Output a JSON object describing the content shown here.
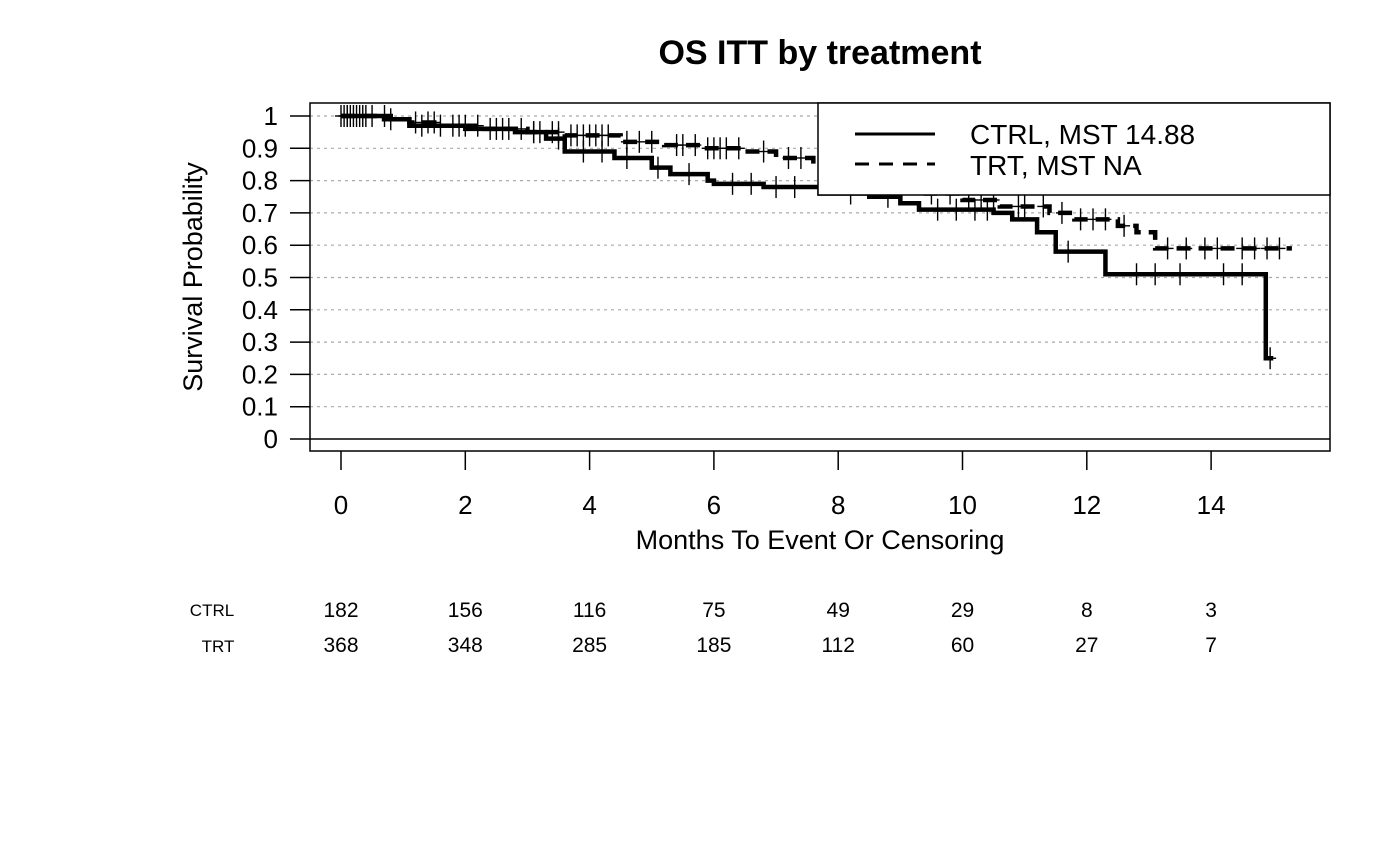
{
  "chart_data": {
    "type": "line",
    "subtype": "kaplan-meier",
    "title": "OS ITT by treatment",
    "xlabel": "Months To Event Or Censoring",
    "ylabel": "Survival Probability",
    "xlim": [
      0,
      15.5
    ],
    "ylim": [
      0,
      1
    ],
    "x_ticks": [
      0,
      2,
      4,
      6,
      8,
      10,
      12,
      14
    ],
    "y_ticks": [
      "0",
      "0.1",
      "0.2",
      "0.3",
      "0.4",
      "0.5",
      "0.6",
      "0.7",
      "0.8",
      "0.9",
      "1"
    ],
    "grid": "horizontal dotted",
    "legend_position": "top-right",
    "series": [
      {
        "name": "CTRL, MST 14.88",
        "line_style": "solid",
        "steps": [
          [
            0,
            1
          ],
          [
            0.8,
            0.99
          ],
          [
            1.1,
            0.97
          ],
          [
            2.0,
            0.96
          ],
          [
            2.8,
            0.95
          ],
          [
            3.3,
            0.93
          ],
          [
            3.6,
            0.89
          ],
          [
            4.4,
            0.87
          ],
          [
            5.0,
            0.84
          ],
          [
            5.3,
            0.82
          ],
          [
            5.9,
            0.8
          ],
          [
            6.0,
            0.79
          ],
          [
            6.8,
            0.78
          ],
          [
            7.7,
            0.76
          ],
          [
            8.5,
            0.75
          ],
          [
            9.0,
            0.73
          ],
          [
            9.3,
            0.71
          ],
          [
            10.5,
            0.7
          ],
          [
            10.8,
            0.68
          ],
          [
            11.2,
            0.64
          ],
          [
            11.5,
            0.58
          ],
          [
            12.3,
            0.51
          ],
          [
            14.88,
            0.25
          ],
          [
            15.0,
            0.25
          ]
        ],
        "censor_times": [
          0.05,
          0.1,
          0.2,
          0.3,
          0.4,
          0.7,
          1.3,
          1.6,
          1.9,
          2.4,
          2.6,
          3.1,
          3.5,
          3.9,
          4.2,
          4.6,
          5.1,
          5.6,
          6.3,
          6.6,
          7.0,
          7.3,
          8.2,
          8.8,
          9.6,
          9.9,
          10.2,
          10.4,
          11.7,
          12.8,
          13.1,
          13.5,
          14.2,
          14.5,
          14.95
        ]
      },
      {
        "name": "TRT, MST NA",
        "line_style": "dashed",
        "steps": [
          [
            0,
            1
          ],
          [
            0.6,
            0.99
          ],
          [
            1.1,
            0.98
          ],
          [
            1.6,
            0.97
          ],
          [
            2.3,
            0.96
          ],
          [
            3.0,
            0.95
          ],
          [
            3.6,
            0.94
          ],
          [
            4.5,
            0.92
          ],
          [
            5.2,
            0.91
          ],
          [
            5.8,
            0.9
          ],
          [
            6.5,
            0.89
          ],
          [
            7.0,
            0.87
          ],
          [
            7.6,
            0.85
          ],
          [
            8.3,
            0.82
          ],
          [
            8.8,
            0.79
          ],
          [
            9.3,
            0.76
          ],
          [
            10.0,
            0.74
          ],
          [
            10.6,
            0.72
          ],
          [
            11.4,
            0.7
          ],
          [
            11.8,
            0.68
          ],
          [
            12.5,
            0.66
          ],
          [
            12.8,
            0.64
          ],
          [
            13.1,
            0.59
          ],
          [
            15.3,
            0.59
          ]
        ],
        "censor_times": [
          0.0,
          0.1,
          0.15,
          0.25,
          0.35,
          0.5,
          0.8,
          1.2,
          1.4,
          1.5,
          1.8,
          2.0,
          2.2,
          2.5,
          2.7,
          2.9,
          3.1,
          3.2,
          3.4,
          3.5,
          3.7,
          3.8,
          3.9,
          4.0,
          4.1,
          4.2,
          4.3,
          4.6,
          4.8,
          5.0,
          5.4,
          5.5,
          5.7,
          5.9,
          6.0,
          6.1,
          6.2,
          6.4,
          6.8,
          7.2,
          7.4,
          8.0,
          8.6,
          9.0,
          9.5,
          9.8,
          10.1,
          10.3,
          10.5,
          10.9,
          11.0,
          11.3,
          11.6,
          11.9,
          12.1,
          12.3,
          12.6,
          13.3,
          13.6,
          13.9,
          14.1,
          14.5,
          14.7,
          14.9,
          15.1
        ]
      }
    ],
    "risk_table": {
      "times": [
        0,
        2,
        4,
        6,
        8,
        10,
        12,
        14
      ],
      "rows": [
        {
          "label": "CTRL",
          "values": [
            182,
            156,
            116,
            75,
            49,
            29,
            8,
            3
          ]
        },
        {
          "label": "TRT",
          "values": [
            368,
            348,
            285,
            185,
            112,
            60,
            27,
            7
          ]
        }
      ]
    }
  }
}
